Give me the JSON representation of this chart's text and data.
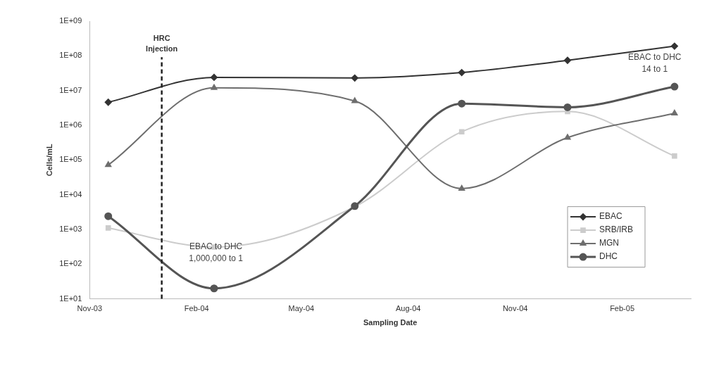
{
  "chart_data": {
    "type": "line",
    "xlabel": "Sampling Date",
    "ylabel": "Cells/mL",
    "x": [
      "2003-11-17",
      "2004-02-16",
      "2004-06-16",
      "2004-09-16",
      "2004-12-16",
      "2005-03-18"
    ],
    "series": [
      {
        "name": "EBAC",
        "color": "#333333",
        "marker": "diamond",
        "values": [
          4600000,
          24000000,
          23000000,
          33000000,
          74000000,
          190000000
        ]
      },
      {
        "name": "SRB/IRB",
        "color": "#cccccc",
        "marker": "square",
        "values": [
          1100,
          310,
          4500,
          650000,
          2500000,
          130000
        ]
      },
      {
        "name": "MGN",
        "color": "#6e6e6e",
        "marker": "triangle",
        "values": [
          72000,
          12000000,
          5000000,
          15000,
          440000,
          2200000
        ]
      },
      {
        "name": "DHC",
        "color": "#555555",
        "marker": "circle",
        "values": [
          2400,
          20,
          4700,
          4200000,
          3300000,
          13000000
        ]
      }
    ],
    "log": "y",
    "xlim": [
      "2003-11-01",
      "2005-04-01"
    ],
    "xticks": [
      {
        "value": "2003-11-01",
        "label": "Nov-03"
      },
      {
        "value": "2004-02-01",
        "label": "Feb-04"
      },
      {
        "value": "2004-05-01",
        "label": "May-04"
      },
      {
        "value": "2004-08-01",
        "label": "Aug-04"
      },
      {
        "value": "2004-11-01",
        "label": "Nov-04"
      },
      {
        "value": "2005-02-01",
        "label": "Feb-05"
      }
    ],
    "ylim": [
      10,
      1000000000
    ],
    "yticks": [
      {
        "value": 10,
        "label": "1E+01"
      },
      {
        "value": 100,
        "label": "1E+02"
      },
      {
        "value": 1000,
        "label": "1E+03"
      },
      {
        "value": 10000,
        "label": "1E+04"
      },
      {
        "value": 100000,
        "label": "1E+05"
      },
      {
        "value": 1000000,
        "label": "1E+06"
      },
      {
        "value": 10000000,
        "label": "1E+07"
      },
      {
        "value": 100000000,
        "label": "1E+08"
      },
      {
        "value": 1000000000,
        "label": "1E+09"
      }
    ],
    "ref_lines": [
      {
        "axis": "x",
        "value": "2004-01-02",
        "label": "HRC\nInjection",
        "color": "#222222",
        "line_style": "dashed"
      }
    ],
    "annotations": [
      "EBAC to DHC\n1,000,000 to 1",
      "EBAC to DHC\n14 to 1"
    ],
    "grid": false,
    "legend": "bottom right"
  }
}
